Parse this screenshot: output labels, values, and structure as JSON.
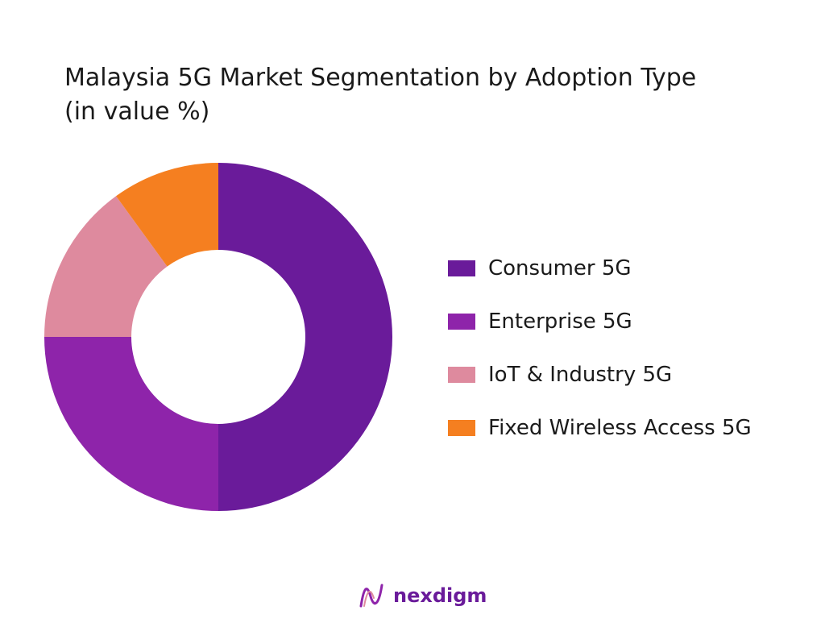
{
  "chart_data": {
    "type": "pie",
    "donut": true,
    "title": " Malaysia 5G Market Segmentation by Adoption Type\n(in value %)",
    "categories": [
      "Consumer 5G",
      "Enterprise 5G",
      "IoT & Industry 5G",
      "Fixed Wireless Access 5G"
    ],
    "values": [
      50,
      25,
      15,
      10
    ],
    "colors": [
      "#6a1b9a",
      "#8e24aa",
      "#de8a9e",
      "#f57f20"
    ],
    "legend_position": "right"
  },
  "brand": {
    "name": "nexdigm",
    "color": "#6a1b9a"
  }
}
